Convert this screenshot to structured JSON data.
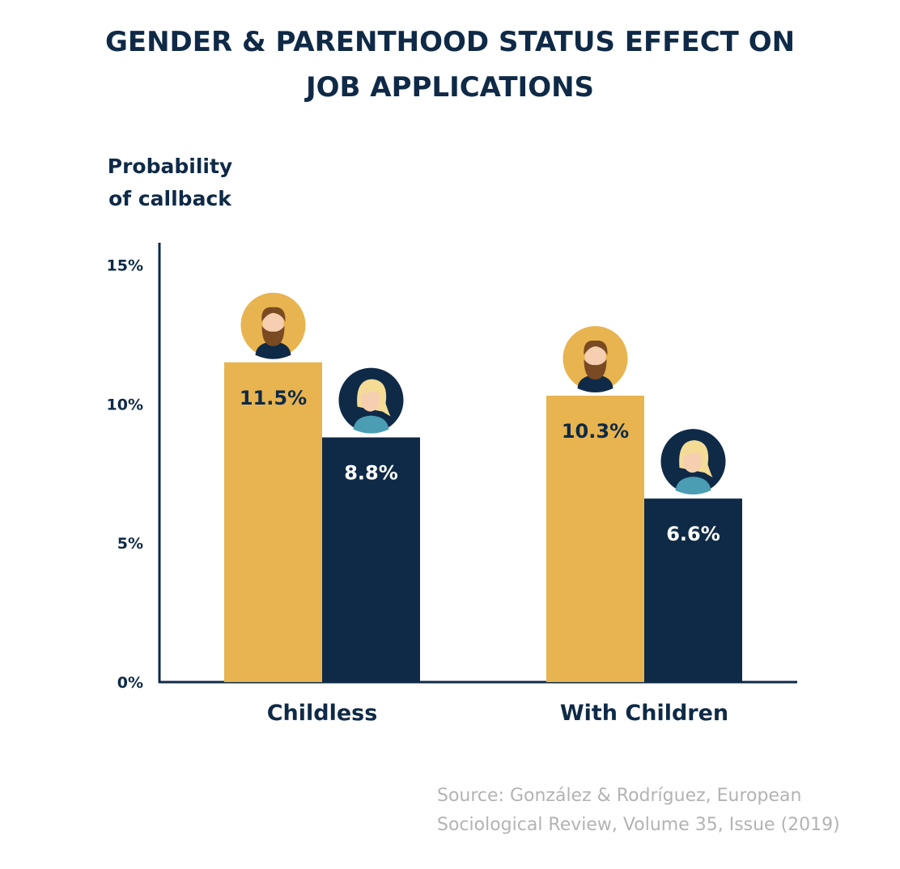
{
  "title_line1": "GENDER & PARENTHOOD STATUS EFFECT ON",
  "title_line2": "JOB APPLICATIONS",
  "source_line1": "Source: González & Rodríguez, European",
  "source_line2": "Sociological Review, Volume 35, Issue (2019)",
  "colors": {
    "men": "#e8b44f",
    "women": "#0f2a47",
    "axis": "#0f2a47",
    "background": "#ffffff"
  },
  "chart_data": {
    "type": "bar",
    "title": "GENDER & PARENTHOOD STATUS EFFECT ON JOB APPLICATIONS",
    "ylabel_line1": "Probability",
    "ylabel_line2": "of callback",
    "xlabel": "",
    "categories": [
      "Childless",
      "With Children"
    ],
    "series": [
      {
        "name": "Men",
        "icon": "man-avatar-icon",
        "values": [
          11.5,
          10.3
        ],
        "labels": [
          "11.5%",
          "10.3%"
        ]
      },
      {
        "name": "Women",
        "icon": "woman-avatar-icon",
        "values": [
          8.8,
          6.6
        ],
        "labels": [
          "8.8%",
          "6.6%"
        ]
      }
    ],
    "yticks": [
      0,
      5,
      10,
      15
    ],
    "ytick_labels": [
      "0%",
      "5%",
      "10%",
      "15%"
    ],
    "ylim": [
      0,
      15.8
    ],
    "grid": false,
    "legend": "none"
  }
}
